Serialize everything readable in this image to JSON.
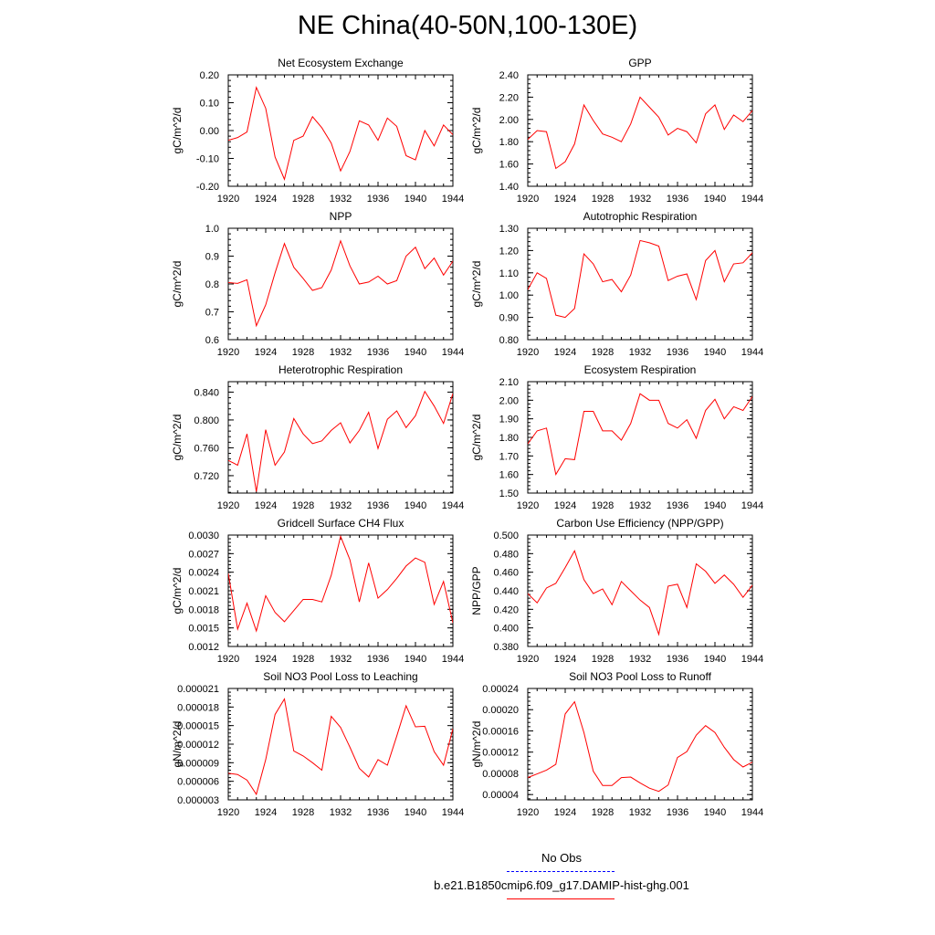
{
  "title": "NE China(40-50N,100-130E)",
  "colors": {
    "model": "#ff0000",
    "obs": "#0000ff",
    "axis": "#000000"
  },
  "legend": {
    "obs_label": "No Obs",
    "model_label": "b.e21.B1850cmip6.f09_g17.DAMIP-hist-ghg.001"
  },
  "chart_data": [
    {
      "type": "line",
      "title": "Net Ecosystem Exchange",
      "ylabel": "gC/m^2/d",
      "xlabel": "",
      "xlim": [
        1920,
        1944
      ],
      "ylim": [
        -0.2,
        0.2
      ],
      "xticks": [
        1920,
        1924,
        1928,
        1932,
        1936,
        1940,
        1944
      ],
      "xtick_labels": [
        "1920",
        "1924",
        "1928",
        "1932",
        "1936",
        "1940",
        "1944"
      ],
      "yticks": [
        -0.2,
        -0.1,
        0.0,
        0.1,
        0.2
      ],
      "ytick_labels": [
        "-0.20",
        "-0.10",
        "0.00",
        "0.10",
        "0.20"
      ],
      "series": [
        {
          "x": [
            1920,
            1921,
            1922,
            1923,
            1924,
            1925,
            1926,
            1927,
            1928,
            1929,
            1930,
            1931,
            1932,
            1933,
            1934,
            1935,
            1936,
            1937,
            1938,
            1939,
            1940,
            1941,
            1942,
            1943,
            1944
          ],
          "values": [
            -0.035,
            -0.025,
            -0.005,
            0.155,
            0.08,
            -0.095,
            -0.175,
            -0.035,
            -0.02,
            0.05,
            0.01,
            -0.045,
            -0.145,
            -0.075,
            0.035,
            0.02,
            -0.035,
            0.045,
            0.015,
            -0.09,
            -0.105,
            0.0,
            -0.055,
            0.02,
            -0.015
          ]
        }
      ]
    },
    {
      "type": "line",
      "title": "GPP",
      "ylabel": "gC/m^2/d",
      "xlabel": "",
      "xlim": [
        1920,
        1944
      ],
      "ylim": [
        1.4,
        2.4
      ],
      "xticks": [
        1920,
        1924,
        1928,
        1932,
        1936,
        1940,
        1944
      ],
      "xtick_labels": [
        "1920",
        "1924",
        "1928",
        "1932",
        "1936",
        "1940",
        "1944"
      ],
      "yticks": [
        1.4,
        1.6,
        1.8,
        2.0,
        2.2,
        2.4
      ],
      "ytick_labels": [
        "1.40",
        "1.60",
        "1.80",
        "2.00",
        "2.20",
        "2.40"
      ],
      "series": [
        {
          "x": [
            1920,
            1921,
            1922,
            1923,
            1924,
            1925,
            1926,
            1927,
            1928,
            1929,
            1930,
            1931,
            1932,
            1933,
            1934,
            1935,
            1936,
            1937,
            1938,
            1939,
            1940,
            1941,
            1942,
            1943,
            1944
          ],
          "values": [
            1.82,
            1.9,
            1.89,
            1.56,
            1.62,
            1.78,
            2.13,
            1.99,
            1.87,
            1.84,
            1.8,
            1.96,
            2.2,
            2.11,
            2.02,
            1.86,
            1.92,
            1.89,
            1.79,
            2.05,
            2.13,
            1.91,
            2.04,
            1.98,
            2.08
          ]
        }
      ]
    },
    {
      "type": "line",
      "title": "NPP",
      "ylabel": "gC/m^2/d",
      "xlabel": "",
      "xlim": [
        1920,
        1944
      ],
      "ylim": [
        0.6,
        1.0
      ],
      "xticks": [
        1920,
        1924,
        1928,
        1932,
        1936,
        1940,
        1944
      ],
      "xtick_labels": [
        "1920",
        "1924",
        "1928",
        "1932",
        "1936",
        "1940",
        "1944"
      ],
      "yticks": [
        0.6,
        0.7,
        0.8,
        0.9,
        1.0
      ],
      "ytick_labels": [
        "0.6",
        "0.7",
        "0.8",
        "0.9",
        "1.0"
      ],
      "series": [
        {
          "x": [
            1920,
            1921,
            1922,
            1923,
            1924,
            1925,
            1926,
            1927,
            1928,
            1929,
            1930,
            1931,
            1932,
            1933,
            1934,
            1935,
            1936,
            1937,
            1938,
            1939,
            1940,
            1941,
            1942,
            1943,
            1944
          ],
          "values": [
            0.805,
            0.802,
            0.815,
            0.65,
            0.725,
            0.84,
            0.945,
            0.86,
            0.82,
            0.777,
            0.787,
            0.85,
            0.955,
            0.865,
            0.8,
            0.807,
            0.828,
            0.8,
            0.812,
            0.9,
            0.932,
            0.855,
            0.893,
            0.832,
            0.882
          ]
        }
      ]
    },
    {
      "type": "line",
      "title": "Autotrophic Respiration",
      "ylabel": "gC/m^2/d",
      "xlabel": "",
      "xlim": [
        1920,
        1944
      ],
      "ylim": [
        0.8,
        1.3
      ],
      "xticks": [
        1920,
        1924,
        1928,
        1932,
        1936,
        1940,
        1944
      ],
      "xtick_labels": [
        "1920",
        "1924",
        "1928",
        "1932",
        "1936",
        "1940",
        "1944"
      ],
      "yticks": [
        0.8,
        0.9,
        1.0,
        1.1,
        1.2,
        1.3
      ],
      "ytick_labels": [
        "0.80",
        "0.90",
        "1.00",
        "1.10",
        "1.20",
        "1.30"
      ],
      "series": [
        {
          "x": [
            1920,
            1921,
            1922,
            1923,
            1924,
            1925,
            1926,
            1927,
            1928,
            1929,
            1930,
            1931,
            1932,
            1933,
            1934,
            1935,
            1936,
            1937,
            1938,
            1939,
            1940,
            1941,
            1942,
            1943,
            1944
          ],
          "values": [
            1.025,
            1.1,
            1.075,
            0.91,
            0.9,
            0.94,
            1.185,
            1.14,
            1.06,
            1.07,
            1.015,
            1.09,
            1.245,
            1.235,
            1.22,
            1.065,
            1.085,
            1.095,
            0.98,
            1.155,
            1.2,
            1.06,
            1.14,
            1.145,
            1.19
          ]
        }
      ]
    },
    {
      "type": "line",
      "title": "Heterotrophic Respiration",
      "ylabel": "gC/m^2/d",
      "xlabel": "",
      "xlim": [
        1920,
        1944
      ],
      "ylim": [
        0.695,
        0.855
      ],
      "xticks": [
        1920,
        1924,
        1928,
        1932,
        1936,
        1940,
        1944
      ],
      "xtick_labels": [
        "1920",
        "1924",
        "1928",
        "1932",
        "1936",
        "1940",
        "1944"
      ],
      "yticks": [
        0.72,
        0.76,
        0.8,
        0.84
      ],
      "ytick_labels": [
        "0.720",
        "0.760",
        "0.800",
        "0.840"
      ],
      "series": [
        {
          "x": [
            1920,
            1921,
            1922,
            1923,
            1924,
            1925,
            1926,
            1927,
            1928,
            1929,
            1930,
            1931,
            1932,
            1933,
            1934,
            1935,
            1936,
            1937,
            1938,
            1939,
            1940,
            1941,
            1942,
            1943,
            1944
          ],
          "values": [
            0.742,
            0.735,
            0.78,
            0.697,
            0.786,
            0.735,
            0.754,
            0.802,
            0.78,
            0.766,
            0.77,
            0.785,
            0.796,
            0.767,
            0.785,
            0.811,
            0.759,
            0.801,
            0.813,
            0.789,
            0.806,
            0.841,
            0.82,
            0.795,
            0.838
          ]
        }
      ]
    },
    {
      "type": "line",
      "title": "Ecosystem Respiration",
      "ylabel": "gC/m^2/d",
      "xlabel": "",
      "xlim": [
        1920,
        1944
      ],
      "ylim": [
        1.5,
        2.1
      ],
      "xticks": [
        1920,
        1924,
        1928,
        1932,
        1936,
        1940,
        1944
      ],
      "xtick_labels": [
        "1920",
        "1924",
        "1928",
        "1932",
        "1936",
        "1940",
        "1944"
      ],
      "yticks": [
        1.5,
        1.6,
        1.7,
        1.8,
        1.9,
        2.0,
        2.1
      ],
      "ytick_labels": [
        "1.50",
        "1.60",
        "1.70",
        "1.80",
        "1.90",
        "2.00",
        "2.10"
      ],
      "series": [
        {
          "x": [
            1920,
            1921,
            1922,
            1923,
            1924,
            1925,
            1926,
            1927,
            1928,
            1929,
            1930,
            1931,
            1932,
            1933,
            1934,
            1935,
            1936,
            1937,
            1938,
            1939,
            1940,
            1941,
            1942,
            1943,
            1944
          ],
          "values": [
            1.765,
            1.835,
            1.85,
            1.6,
            1.685,
            1.68,
            1.94,
            1.94,
            1.835,
            1.835,
            1.785,
            1.875,
            2.035,
            2.0,
            2.0,
            1.875,
            1.85,
            1.895,
            1.795,
            1.945,
            2.005,
            1.9,
            1.965,
            1.945,
            2.02
          ]
        }
      ]
    },
    {
      "type": "line",
      "title": "Gridcell Surface CH4 Flux",
      "ylabel": "gC/m^2/d",
      "xlabel": "",
      "xlim": [
        1920,
        1944
      ],
      "ylim": [
        0.0012,
        0.003
      ],
      "xticks": [
        1920,
        1924,
        1928,
        1932,
        1936,
        1940,
        1944
      ],
      "xtick_labels": [
        "1920",
        "1924",
        "1928",
        "1932",
        "1936",
        "1940",
        "1944"
      ],
      "yticks": [
        0.0012,
        0.0015,
        0.0018,
        0.0021,
        0.0024,
        0.0027,
        0.003
      ],
      "ytick_labels": [
        "0.0012",
        "0.0015",
        "0.0018",
        "0.0021",
        "0.0024",
        "0.0027",
        "0.0030"
      ],
      "series": [
        {
          "x": [
            1920,
            1921,
            1922,
            1923,
            1924,
            1925,
            1926,
            1927,
            1928,
            1929,
            1930,
            1931,
            1932,
            1933,
            1934,
            1935,
            1936,
            1937,
            1938,
            1939,
            1940,
            1941,
            1942,
            1943,
            1944
          ],
          "values": [
            0.00238,
            0.00148,
            0.0019,
            0.00145,
            0.00202,
            0.00175,
            0.0016,
            0.00178,
            0.00196,
            0.00196,
            0.00192,
            0.00235,
            0.00298,
            0.0026,
            0.00192,
            0.00255,
            0.00198,
            0.00212,
            0.0023,
            0.0025,
            0.00263,
            0.00256,
            0.00188,
            0.00225,
            0.00158
          ]
        }
      ]
    },
    {
      "type": "line",
      "title": "Carbon Use Efficiency (NPP/GPP)",
      "ylabel": "NPP/GPP",
      "xlabel": "",
      "xlim": [
        1920,
        1944
      ],
      "ylim": [
        0.38,
        0.5
      ],
      "xticks": [
        1920,
        1924,
        1928,
        1932,
        1936,
        1940,
        1944
      ],
      "xtick_labels": [
        "1920",
        "1924",
        "1928",
        "1932",
        "1936",
        "1940",
        "1944"
      ],
      "yticks": [
        0.38,
        0.4,
        0.42,
        0.44,
        0.46,
        0.48,
        0.5
      ],
      "ytick_labels": [
        "0.380",
        "0.400",
        "0.420",
        "0.440",
        "0.460",
        "0.480",
        "0.500"
      ],
      "series": [
        {
          "x": [
            1920,
            1921,
            1922,
            1923,
            1924,
            1925,
            1926,
            1927,
            1928,
            1929,
            1930,
            1931,
            1932,
            1933,
            1934,
            1935,
            1936,
            1937,
            1938,
            1939,
            1940,
            1941,
            1942,
            1943,
            1944
          ],
          "values": [
            0.437,
            0.427,
            0.443,
            0.448,
            0.465,
            0.483,
            0.452,
            0.437,
            0.442,
            0.425,
            0.45,
            0.44,
            0.43,
            0.422,
            0.393,
            0.445,
            0.447,
            0.422,
            0.469,
            0.461,
            0.448,
            0.457,
            0.447,
            0.433,
            0.446
          ]
        }
      ]
    },
    {
      "type": "line",
      "title": "Soil NO3 Pool Loss to Leaching",
      "ylabel": "gN/m^2/d",
      "xlabel": "",
      "xlim": [
        1920,
        1944
      ],
      "ylim": [
        3e-06,
        2.1e-05
      ],
      "xticks": [
        1920,
        1924,
        1928,
        1932,
        1936,
        1940,
        1944
      ],
      "xtick_labels": [
        "1920",
        "1924",
        "1928",
        "1932",
        "1936",
        "1940",
        "1944"
      ],
      "yticks": [
        3e-06,
        6e-06,
        9e-06,
        1.2e-05,
        1.5e-05,
        1.8e-05,
        2.1e-05
      ],
      "ytick_labels": [
        "0.000003",
        "0.000006",
        "0.000009",
        "0.000012",
        "0.000015",
        "0.000018",
        "0.000021"
      ],
      "series": [
        {
          "x": [
            1920,
            1921,
            1922,
            1923,
            1924,
            1925,
            1926,
            1927,
            1928,
            1929,
            1930,
            1931,
            1932,
            1933,
            1934,
            1935,
            1936,
            1937,
            1938,
            1939,
            1940,
            1941,
            1942,
            1943,
            1944
          ],
          "values": [
            7.3e-06,
            7.1e-06,
            6.2e-06,
            3.9e-06,
            9.5e-06,
            1.68e-05,
            1.93e-05,
            1.09e-05,
            1.01e-05,
            9e-06,
            7.8e-06,
            1.65e-05,
            1.47e-05,
            1.15e-05,
            8.1e-06,
            6.7e-06,
            9.5e-06,
            8.6e-06,
            1.33e-05,
            1.82e-05,
            1.48e-05,
            1.49e-05,
            1.08e-05,
            8.6e-06,
            1.45e-05
          ]
        }
      ]
    },
    {
      "type": "line",
      "title": "Soil NO3 Pool Loss to Runoff",
      "ylabel": "gN/m^2/d",
      "xlabel": "",
      "xlim": [
        1920,
        1944
      ],
      "ylim": [
        3e-05,
        0.00024
      ],
      "xticks": [
        1920,
        1924,
        1928,
        1932,
        1936,
        1940,
        1944
      ],
      "xtick_labels": [
        "1920",
        "1924",
        "1928",
        "1932",
        "1936",
        "1940",
        "1944"
      ],
      "yticks": [
        4e-05,
        8e-05,
        0.00012,
        0.00016,
        0.0002,
        0.00024
      ],
      "ytick_labels": [
        "0.00004",
        "0.00008",
        "0.00012",
        "0.00016",
        "0.00020",
        "0.00024"
      ],
      "series": [
        {
          "x": [
            1920,
            1921,
            1922,
            1923,
            1924,
            1925,
            1926,
            1927,
            1928,
            1929,
            1930,
            1931,
            1932,
            1933,
            1934,
            1935,
            1936,
            1937,
            1938,
            1939,
            1940,
            1941,
            1942,
            1943,
            1944
          ],
          "values": [
            7.2e-05,
            7.9e-05,
            8.6e-05,
            9.7e-05,
            0.000192,
            0.000215,
            0.000157,
            8.4e-05,
            5.7e-05,
            5.7e-05,
            7.2e-05,
            7.3e-05,
            6.2e-05,
            5.2e-05,
            4.6e-05,
            5.8e-05,
            0.00011,
            0.000121,
            0.000152,
            0.00017,
            0.000157,
            0.000129,
            0.000106,
            9.2e-05,
            0.000101
          ]
        }
      ]
    }
  ]
}
